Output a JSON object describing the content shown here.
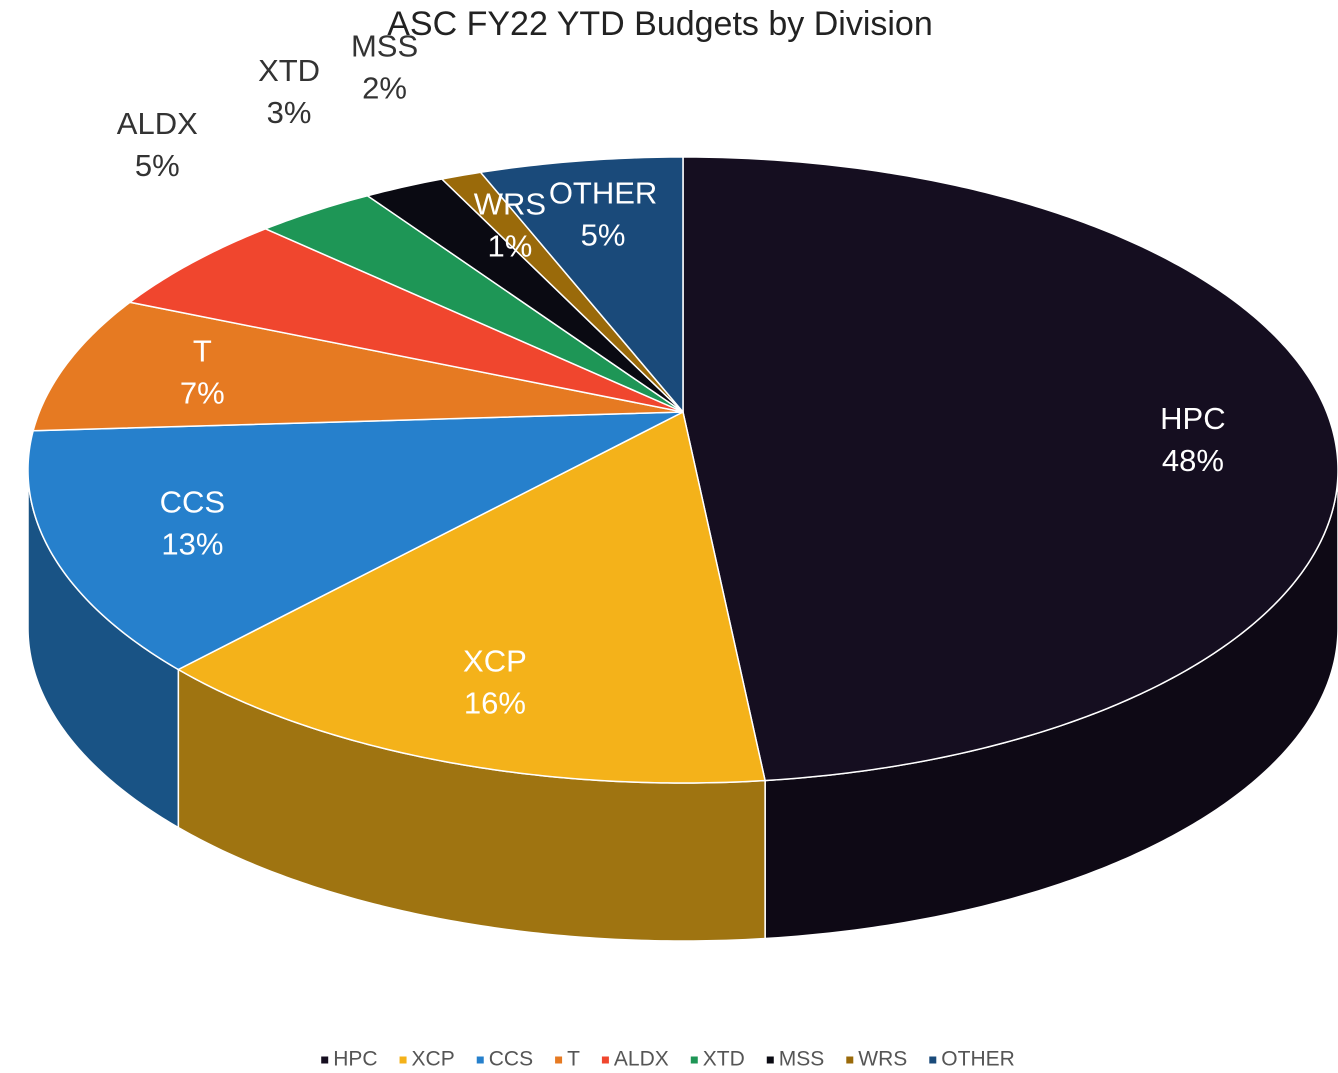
{
  "chart_data": {
    "type": "pie",
    "title": "ASC FY22 YTD Budgets by Division",
    "categories": [
      "HPC",
      "XCP",
      "CCS",
      "T",
      "ALDX",
      "XTD",
      "MSS",
      "WRS",
      "OTHER"
    ],
    "values": [
      48,
      16,
      13,
      7,
      5,
      3,
      2,
      1,
      5
    ],
    "value_labels": [
      "48%",
      "16%",
      "13%",
      "7%",
      "5%",
      "3%",
      "2%",
      "1%",
      "5%"
    ],
    "colors": [
      "#150e20",
      "#f4b21a",
      "#2680cc",
      "#e67a22",
      "#f0462e",
      "#1e9656",
      "#0a0a12",
      "#9a6a0a",
      "#1a4a7a"
    ],
    "legend": "bottom"
  }
}
